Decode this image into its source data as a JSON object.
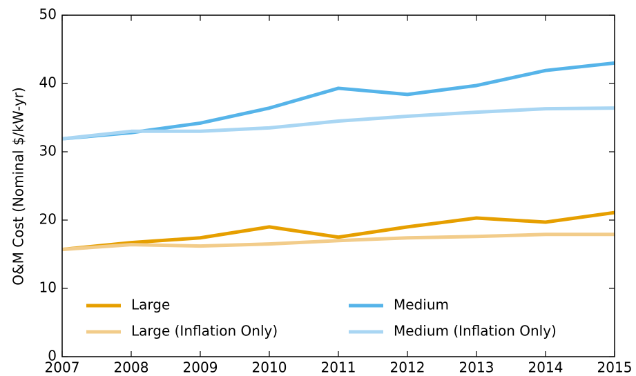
{
  "chart_data": {
    "type": "line",
    "ylabel": "O&M Cost (Nominal $/kW-yr)",
    "x": [
      2007,
      2008,
      2009,
      2010,
      2011,
      2012,
      2013,
      2014,
      2015
    ],
    "series": [
      {
        "name": "Large",
        "color": "#e69f00",
        "values": [
          15.7,
          16.7,
          17.4,
          19.0,
          17.5,
          19.0,
          20.3,
          19.7,
          21.1
        ]
      },
      {
        "name": "Large (Inflation Only)",
        "color": "#f2cc8a",
        "values": [
          15.7,
          16.4,
          16.2,
          16.5,
          17.0,
          17.4,
          17.6,
          17.9,
          17.9
        ]
      },
      {
        "name": "Medium",
        "color": "#56b4e9",
        "values": [
          31.9,
          32.8,
          34.2,
          36.4,
          39.3,
          38.4,
          39.7,
          41.9,
          43.0
        ]
      },
      {
        "name": "Medium (Inflation Only)",
        "color": "#a9d6f3",
        "values": [
          31.9,
          33.0,
          33.0,
          33.5,
          34.5,
          35.2,
          35.8,
          36.3,
          36.4
        ]
      }
    ],
    "xlim": [
      2007,
      2015
    ],
    "xticks": [
      2007,
      2008,
      2009,
      2010,
      2011,
      2012,
      2013,
      2014,
      2015
    ],
    "ylim": [
      0,
      50
    ],
    "yticks": [
      0,
      10,
      20,
      30,
      40,
      50
    ]
  }
}
